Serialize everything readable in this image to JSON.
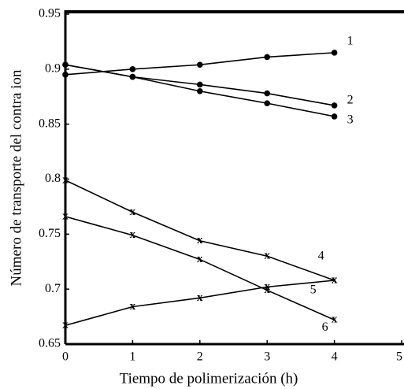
{
  "chart_data": {
    "type": "line",
    "xlabel": "Tiempo de polimerización (h)",
    "ylabel": "Número de transporte del contra ion",
    "xlim": [
      0,
      5
    ],
    "xticks": [
      0,
      1,
      2,
      3,
      4,
      5
    ],
    "ylim": [
      0.65,
      0.95
    ],
    "yticks": [
      0.95,
      0.9,
      0.85,
      0.8,
      0.75,
      0.7,
      0.65
    ],
    "x": [
      0,
      1,
      2,
      3,
      4
    ],
    "series": [
      {
        "name": "1",
        "color": "#000000",
        "marker": "dot",
        "values": [
          0.895,
          0.9,
          0.904,
          0.911,
          0.915
        ]
      },
      {
        "name": "2",
        "color": "#000000",
        "marker": "dot",
        "values": [
          0.904,
          0.893,
          0.886,
          0.878,
          0.867
        ]
      },
      {
        "name": "3",
        "color": "#000000",
        "marker": "dot",
        "values": [
          0.904,
          0.893,
          0.88,
          0.869,
          0.857
        ]
      },
      {
        "name": "4",
        "color": "#000000",
        "marker": "x",
        "values": [
          0.799,
          0.77,
          0.744,
          0.73,
          0.708
        ]
      },
      {
        "name": "5",
        "color": "#000000",
        "marker": "x",
        "values": [
          0.667,
          0.684,
          0.692,
          0.702,
          0.708
        ]
      },
      {
        "name": "6",
        "color": "#000000",
        "marker": "x",
        "values": [
          0.766,
          0.749,
          0.727,
          0.699,
          0.672
        ]
      }
    ]
  }
}
